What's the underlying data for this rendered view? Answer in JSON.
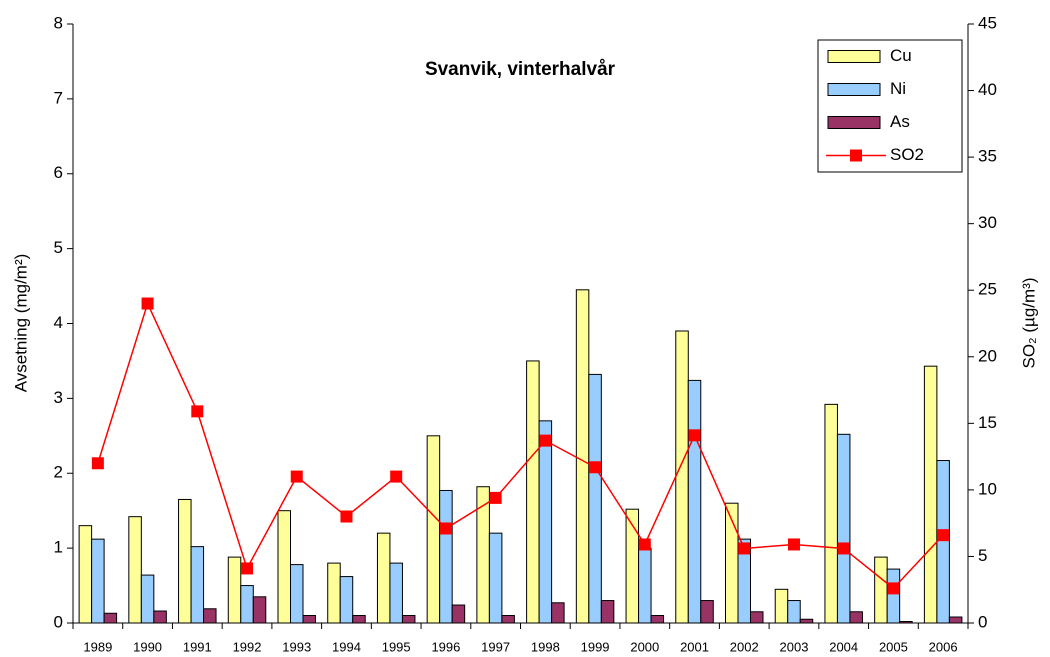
{
  "chart_data": {
    "type": "bar_line",
    "title": "Svanvik, vinterhalvår",
    "y_label": "Avsetning (mg/m²)",
    "y2_label": "SO₂ (µg/m³)",
    "categories": [
      "1989",
      "1990",
      "1991",
      "1992",
      "1993",
      "1994",
      "1995",
      "1996",
      "1997",
      "1998",
      "1999",
      "2000",
      "2001",
      "2002",
      "2003",
      "2004",
      "2005",
      "2006"
    ],
    "ylim": [
      0,
      8
    ],
    "yticks": [
      0,
      1,
      2,
      3,
      4,
      5,
      6,
      7,
      8
    ],
    "y2lim": [
      0,
      45
    ],
    "y2ticks": [
      0,
      5,
      10,
      15,
      20,
      25,
      30,
      35,
      40,
      45
    ],
    "legend": "top-right",
    "series": [
      {
        "name": "Cu",
        "color": "#ffff99",
        "values": [
          1.3,
          1.42,
          1.65,
          0.88,
          1.5,
          0.8,
          1.2,
          2.5,
          1.82,
          3.5,
          4.45,
          1.52,
          3.9,
          1.6,
          0.45,
          2.92,
          0.88,
          3.43
        ]
      },
      {
        "name": "Ni",
        "color": "#99ccff",
        "values": [
          1.12,
          0.64,
          1.02,
          0.5,
          0.78,
          0.62,
          0.8,
          1.77,
          1.2,
          2.7,
          3.32,
          1.0,
          3.24,
          1.12,
          0.3,
          2.52,
          0.72,
          2.17
        ]
      },
      {
        "name": "As",
        "color": "#993366",
        "values": [
          0.13,
          0.16,
          0.19,
          0.35,
          0.1,
          0.1,
          0.1,
          0.24,
          0.1,
          0.27,
          0.3,
          0.1,
          0.3,
          0.15,
          0.05,
          0.15,
          0.02,
          0.08
        ]
      },
      {
        "name": "SO2",
        "color": "#ff0000",
        "axis": "y2",
        "type": "line",
        "values": [
          12,
          24,
          15.9,
          4.1,
          11,
          8,
          11,
          7.1,
          9.4,
          13.7,
          11.7,
          5.9,
          14.1,
          5.6,
          5.9,
          5.6,
          2.6,
          6.6
        ]
      }
    ]
  }
}
